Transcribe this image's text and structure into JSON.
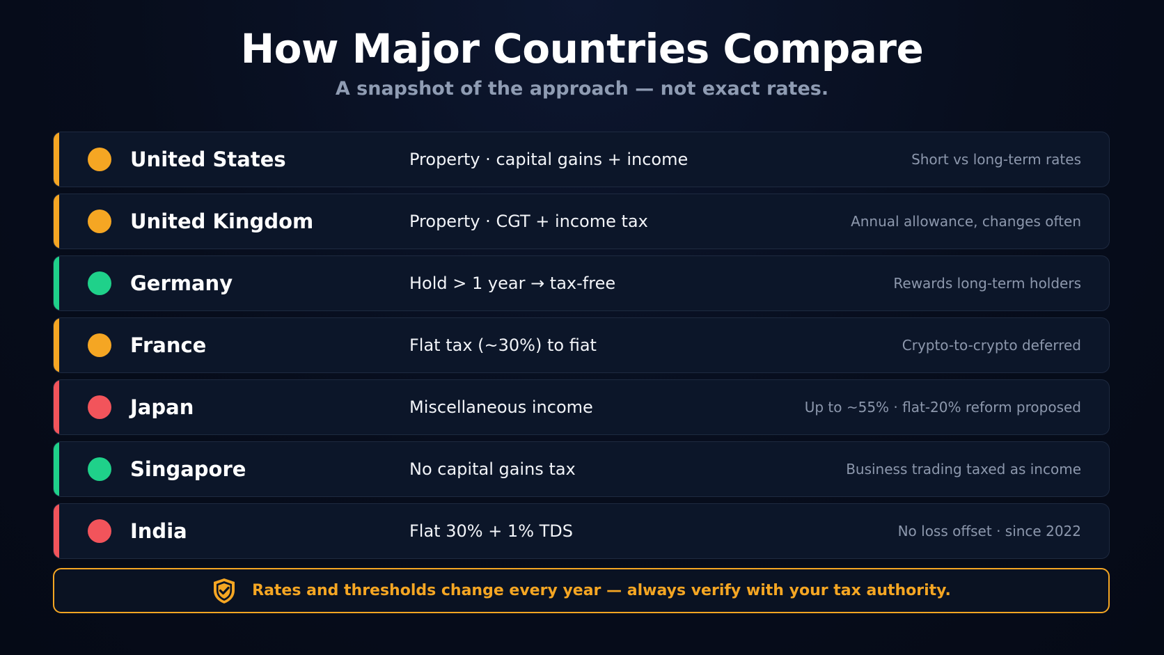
{
  "header": {
    "title": "How Major Countries Compare",
    "subtitle": "A snapshot of the approach — not exact rates."
  },
  "colors": {
    "background": "#070d1c",
    "amber": "#f5a623",
    "green": "#1fd18a",
    "red": "#f2545b",
    "row_background": "#0c1629",
    "muted_text": "#8d98ad"
  },
  "rows": [
    {
      "country": "United States",
      "rule": "Property · capital gains + income",
      "note": "Short vs long-term rates",
      "status_color": "#f5a623"
    },
    {
      "country": "United Kingdom",
      "rule": "Property · CGT + income tax",
      "note": "Annual allowance, changes often",
      "status_color": "#f5a623"
    },
    {
      "country": "Germany",
      "rule": "Hold > 1 year →  tax-free",
      "note": "Rewards long-term holders",
      "status_color": "#1fd18a"
    },
    {
      "country": "France",
      "rule": "Flat tax (~30%) to fiat",
      "note": "Crypto-to-crypto deferred",
      "status_color": "#f5a623"
    },
    {
      "country": "Japan",
      "rule": "Miscellaneous income",
      "note": "Up to ~55% · flat-20% reform proposed",
      "status_color": "#f2545b"
    },
    {
      "country": "Singapore",
      "rule": "No capital gains tax",
      "note": "Business trading taxed as income",
      "status_color": "#1fd18a"
    },
    {
      "country": "India",
      "rule": "Flat 30% + 1% TDS",
      "note": "No loss offset · since 2022",
      "status_color": "#f2545b"
    }
  ],
  "footer": {
    "icon": "shield-check-icon",
    "text": "Rates and thresholds change every year — always verify with your tax authority."
  }
}
